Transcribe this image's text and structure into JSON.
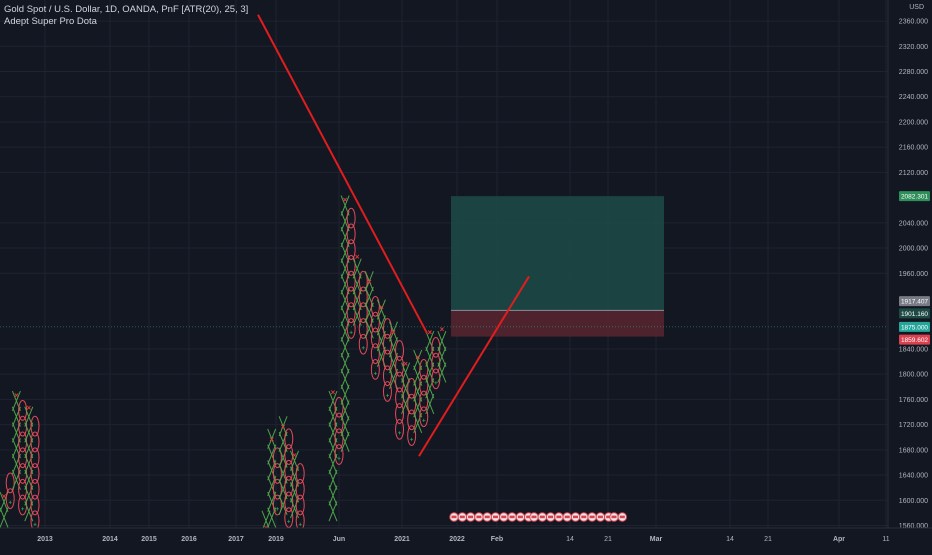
{
  "header": {
    "symbol_title": "Gold Spot / U.S. Dollar, 1D, OANDA, PnF [ATR(20), 25, 3]",
    "indicator": "Adept Super Pro Dota",
    "currency": "USD"
  },
  "colors": {
    "background": "#131722",
    "grid": "#1f2330",
    "axis_text": "#b2b5be",
    "x_mark": "#4ea34a",
    "o_mark": "#e44a5a",
    "x_tip_marker": "#e03c3c",
    "o_tip_marker": "#2ea84a",
    "trendline": "#e11d1d",
    "target_zone": "#1c4b47",
    "stop_zone": "#5a2630",
    "badge_target": "#2f8f5a",
    "badge_current": "#26a69a",
    "badge_stop": "#d9414f",
    "badge_gray": "#787b86"
  },
  "chart_data": {
    "type": "pnf",
    "y_axis": {
      "min": 1550,
      "max": 2370,
      "ticks": [
        1560,
        1600,
        1640,
        1680,
        1720,
        1760,
        1800,
        1840,
        1960,
        2000,
        2040,
        2120,
        2160,
        2200,
        2240,
        2280,
        2320,
        2360
      ],
      "tick_labels": [
        "1560.000",
        "1600.000",
        "1640.000",
        "1680.000",
        "1720.000",
        "1760.000",
        "1800.000",
        "1840.000",
        "1960.000",
        "2000.000",
        "2040.000",
        "2120.000",
        "2160.000",
        "2200.000",
        "2240.000",
        "2280.000",
        "2320.000",
        "2360.000"
      ]
    },
    "x_axis_labels": [
      "2013",
      "2014",
      "2015",
      "2016",
      "2017",
      "2019",
      "Jun",
      "2021",
      "2022",
      "Feb",
      "14",
      "21",
      "Mar",
      "14",
      "21",
      "Apr",
      "11"
    ],
    "price_badges": [
      {
        "label": "2082.301",
        "value": 2082.301,
        "role": "target"
      },
      {
        "label": "1917.407",
        "value": 1917.407,
        "role": "gray"
      },
      {
        "label": "1901.160",
        "value": 1901.16,
        "role": "current-dark"
      },
      {
        "label": "1875.000",
        "value": 1875.0,
        "role": "current"
      },
      {
        "label": "1859.602",
        "value": 1859.602,
        "role": "stop"
      }
    ],
    "position_tool": {
      "entry": 1901.16,
      "target": 2082.301,
      "stop": 1859.602
    },
    "pnf_columns": [
      {
        "kind": "X",
        "low": 1560,
        "high": 1610
      },
      {
        "kind": "O",
        "low": 1590,
        "high": 1640
      },
      {
        "kind": "X",
        "low": 1620,
        "high": 1770
      },
      {
        "kind": "O",
        "low": 1580,
        "high": 1760
      },
      {
        "kind": "X",
        "low": 1570,
        "high": 1750
      },
      {
        "kind": "O",
        "low": 1555,
        "high": 1735
      },
      {
        "kind": "X",
        "low": 1555,
        "high": 1560
      },
      {
        "kind": "X",
        "low": 1560,
        "high": 1700
      },
      {
        "kind": "O",
        "low": 1580,
        "high": 1690
      },
      {
        "kind": "X",
        "low": 1580,
        "high": 1720
      },
      {
        "kind": "O",
        "low": 1560,
        "high": 1700
      },
      {
        "kind": "X",
        "low": 1575,
        "high": 1675
      },
      {
        "kind": "O",
        "low": 1555,
        "high": 1660
      },
      {
        "kind": "X",
        "low": 1570,
        "high": 1775
      },
      {
        "kind": "O",
        "low": 1660,
        "high": 1755
      },
      {
        "kind": "X",
        "low": 1680,
        "high": 2080
      },
      {
        "kind": "O",
        "low": 1860,
        "high": 2060
      },
      {
        "kind": "X",
        "low": 1880,
        "high": 1990
      },
      {
        "kind": "O",
        "low": 1835,
        "high": 1970
      },
      {
        "kind": "X",
        "low": 1860,
        "high": 1950
      },
      {
        "kind": "O",
        "low": 1795,
        "high": 1930
      },
      {
        "kind": "X",
        "low": 1815,
        "high": 1910
      },
      {
        "kind": "O",
        "low": 1760,
        "high": 1890
      },
      {
        "kind": "X",
        "low": 1780,
        "high": 1870
      },
      {
        "kind": "O",
        "low": 1700,
        "high": 1850
      },
      {
        "kind": "X",
        "low": 1740,
        "high": 1820
      },
      {
        "kind": "O",
        "low": 1690,
        "high": 1800
      },
      {
        "kind": "X",
        "low": 1710,
        "high": 1830
      },
      {
        "kind": "O",
        "low": 1720,
        "high": 1810
      },
      {
        "kind": "X",
        "low": 1740,
        "high": 1870
      },
      {
        "kind": "O",
        "low": 1780,
        "high": 1850
      },
      {
        "kind": "X",
        "low": 1790,
        "high": 1875
      }
    ],
    "trendlines": [
      {
        "from": {
          "col": 8.5,
          "price": 2370
        },
        "to": {
          "col": 25.0,
          "price": 1865
        }
      },
      {
        "from": {
          "col": 25.3,
          "price": 1670
        },
        "to": {
          "col": 32.3,
          "price": 1955
        }
      }
    ],
    "event_icon_groups": [
      10,
      10,
      2
    ]
  }
}
